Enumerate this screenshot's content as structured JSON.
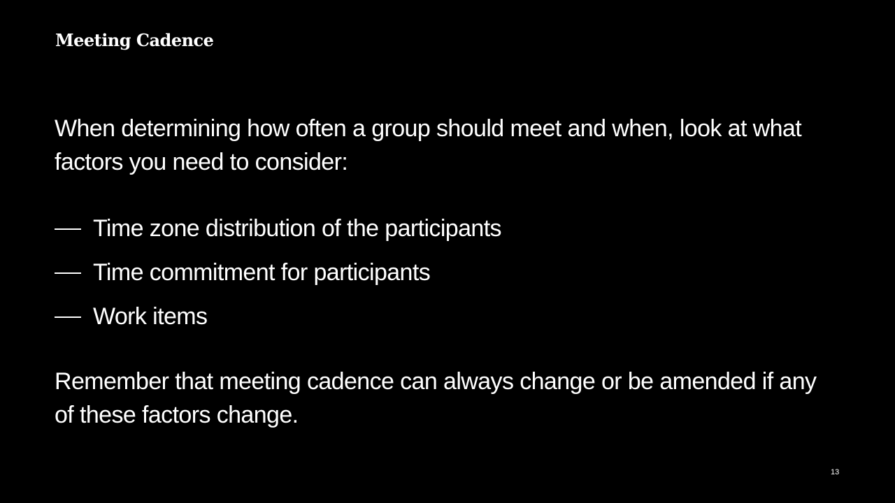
{
  "slide": {
    "title": "Meeting Cadence",
    "intro": "When determining how often a group should meet and when, look at what factors you need to consider:",
    "bullets": [
      "Time zone distribution of the participants",
      "Time commitment for participants",
      "Work items"
    ],
    "closing": "Remember that meeting cadence can always change or be amended if any of these factors change.",
    "page_number": "13"
  },
  "colors": {
    "background": "#000000",
    "text": "#ffffff"
  }
}
